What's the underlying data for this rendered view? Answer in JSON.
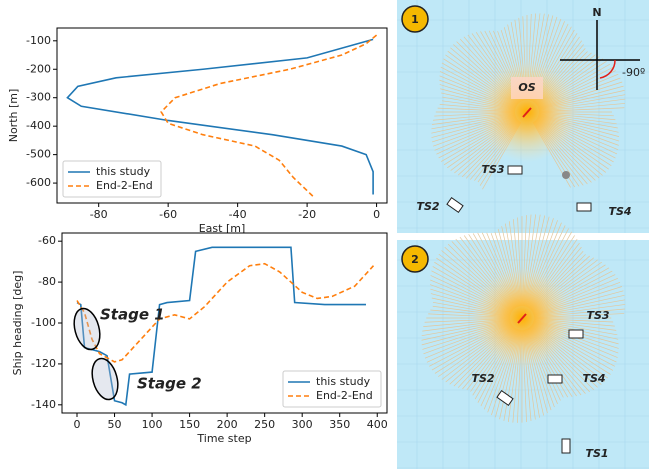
{
  "chart_data": [
    {
      "type": "line",
      "xlabel": "East [m]",
      "ylabel": "North [m]",
      "xlim": [
        -92,
        3
      ],
      "ylim": [
        -670,
        -55
      ],
      "xticks": [
        -80,
        -60,
        -40,
        -20,
        0
      ],
      "yticks": [
        -100,
        -200,
        -300,
        -400,
        -500,
        -600
      ],
      "legend": "lower left",
      "series": [
        {
          "name": "this study",
          "color": "#1f77b4",
          "style": "solid",
          "x": [
            -1,
            -20,
            -50,
            -75,
            -86,
            -89,
            -85,
            -60,
            -30,
            -10,
            -3,
            -1,
            -1
          ],
          "values": [
            -95,
            -160,
            -200,
            -230,
            -260,
            -300,
            -330,
            -380,
            -430,
            -470,
            -500,
            -560,
            -640
          ]
        },
        {
          "name": "End-2-End",
          "color": "#ff7f0e",
          "style": "dashed",
          "x": [
            0,
            -3,
            -10,
            -25,
            -45,
            -58,
            -62,
            -60,
            -50,
            -35,
            -28,
            -24,
            -18
          ],
          "values": [
            -80,
            -110,
            -150,
            -200,
            -250,
            -300,
            -350,
            -390,
            -430,
            -470,
            -520,
            -580,
            -650
          ]
        }
      ]
    },
    {
      "type": "line",
      "xlabel": "Time step",
      "ylabel": "Ship heading [deg]",
      "xlim": [
        -20,
        413
      ],
      "ylim": [
        -144,
        -56
      ],
      "xticks": [
        0,
        50,
        100,
        150,
        200,
        250,
        300,
        350,
        400
      ],
      "yticks": [
        -60,
        -80,
        -100,
        -120,
        -140
      ],
      "legend": "lower right",
      "annotations": [
        "Stage 1",
        "Stage 2"
      ],
      "series": [
        {
          "name": "this study",
          "color": "#1f77b4",
          "style": "solid",
          "x": [
            0,
            5,
            10,
            20,
            30,
            40,
            50,
            60,
            65,
            70,
            100,
            110,
            120,
            150,
            158,
            180,
            240,
            285,
            290,
            330,
            385
          ],
          "values": [
            -90,
            -91,
            -112,
            -113,
            -114,
            -116,
            -138,
            -139,
            -140,
            -125,
            -124,
            -91,
            -90,
            -89,
            -65,
            -63,
            -63,
            -63,
            -90,
            -91,
            -91
          ]
        },
        {
          "name": "End-2-End",
          "color": "#ff7f0e",
          "style": "dashed",
          "x": [
            0,
            10,
            20,
            30,
            40,
            50,
            60,
            70,
            90,
            110,
            130,
            150,
            170,
            200,
            230,
            250,
            270,
            300,
            320,
            340,
            370,
            395
          ],
          "values": [
            -89,
            -95,
            -108,
            -115,
            -117,
            -119,
            -118,
            -114,
            -106,
            -98,
            -96,
            -98,
            -92,
            -80,
            -72,
            -71,
            -75,
            -85,
            -88,
            -87,
            -82,
            -72
          ]
        }
      ]
    }
  ],
  "panels": [
    {
      "number": "1",
      "north": "N",
      "angle": "-90º",
      "labels": [
        "OS",
        "TS3",
        "TS2",
        "TS4"
      ]
    },
    {
      "number": "2",
      "labels": [
        "TS3",
        "TS2",
        "TS4",
        "TS1"
      ]
    }
  ]
}
